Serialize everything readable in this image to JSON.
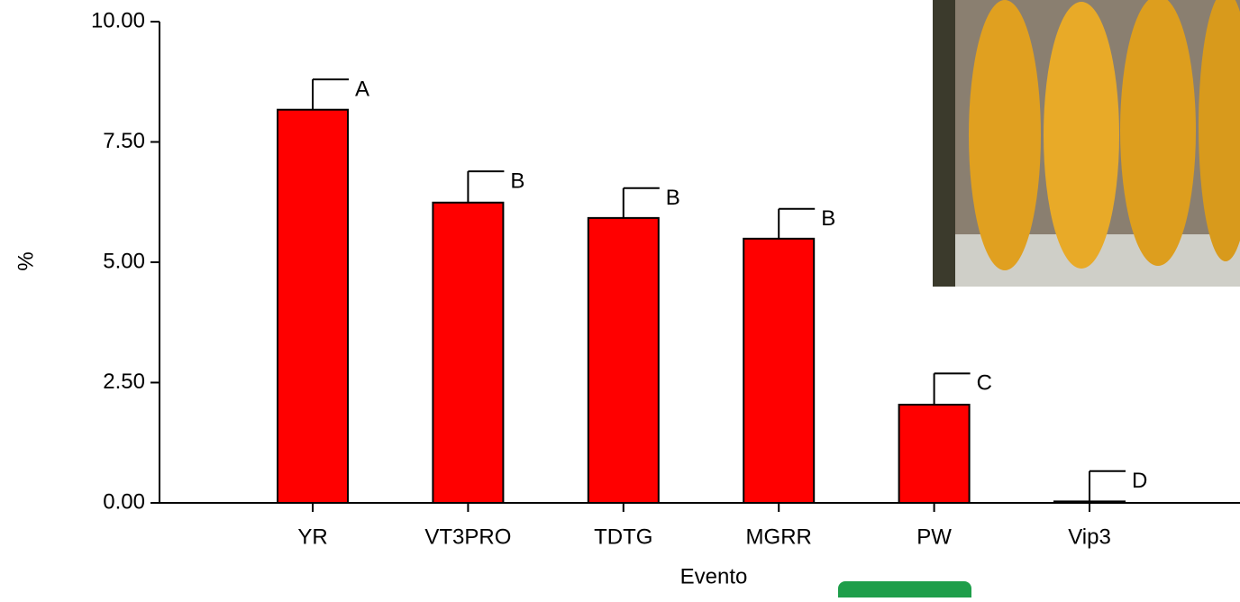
{
  "chart_data": {
    "type": "bar",
    "x_label": "Evento",
    "y_label": "%",
    "categories": [
      "YR",
      "VT3PRO",
      "TDTG",
      "MGRR",
      "PW",
      "Vip3"
    ],
    "values": [
      8.17,
      6.24,
      5.92,
      5.49,
      2.04,
      0.03
    ],
    "errors": [
      0.63,
      0.65,
      0.62,
      0.62,
      0.65,
      0.63
    ],
    "annotations": [
      "A",
      "B",
      "B",
      "B",
      "C",
      "D"
    ],
    "color": "#ff0000",
    "ylim": [
      0,
      10
    ],
    "yticks": [
      {
        "value": 0,
        "label": "0.00"
      },
      {
        "value": 2.5,
        "label": "2.50"
      },
      {
        "value": 5,
        "label": "5.00"
      },
      {
        "value": 7.5,
        "label": "7.50"
      },
      {
        "value": 10,
        "label": "10.00"
      }
    ]
  }
}
